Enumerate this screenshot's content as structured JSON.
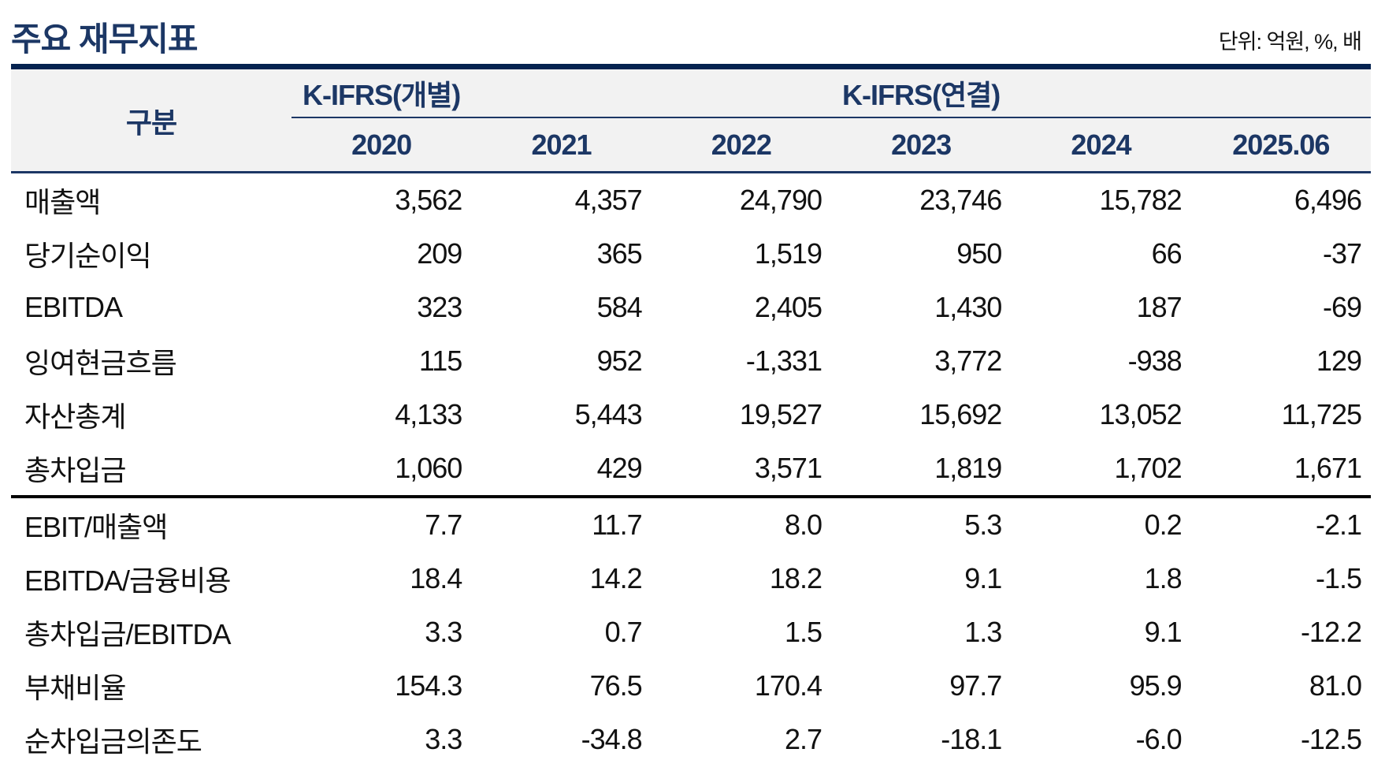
{
  "title": "주요 재무지표",
  "unit_note": "단위: 억원, %, 배",
  "colors": {
    "navy_text": "#1c3765",
    "top_rule": "#052350",
    "header_bg": "#f2f2f2",
    "body_text": "#111111",
    "section_rule": "#000000"
  },
  "table": {
    "corner_label": "구분",
    "group_headers": {
      "individual": "K-IFRS(개별)",
      "consolidated": "K-IFRS(연결)"
    },
    "years": [
      "2020",
      "2021",
      "2022",
      "2023",
      "2024",
      "2025.06"
    ],
    "rows": [
      {
        "label": "매출액",
        "values": [
          "3,562",
          "4,357",
          "24,790",
          "23,746",
          "15,782",
          "6,496"
        ]
      },
      {
        "label": "당기순이익",
        "values": [
          "209",
          "365",
          "1,519",
          "950",
          "66",
          "-37"
        ]
      },
      {
        "label": "EBITDA",
        "values": [
          "323",
          "584",
          "2,405",
          "1,430",
          "187",
          "-69"
        ]
      },
      {
        "label": "잉여현금흐름",
        "values": [
          "115",
          "952",
          "-1,331",
          "3,772",
          "-938",
          "129"
        ]
      },
      {
        "label": "자산총계",
        "values": [
          "4,133",
          "5,443",
          "19,527",
          "15,692",
          "13,052",
          "11,725"
        ]
      },
      {
        "label": "총차입금",
        "values": [
          "1,060",
          "429",
          "3,571",
          "1,819",
          "1,702",
          "1,671"
        ]
      },
      {
        "label": "EBIT/매출액",
        "values": [
          "7.7",
          "11.7",
          "8.0",
          "5.3",
          "0.2",
          "-2.1"
        ]
      },
      {
        "label": "EBITDA/금융비용",
        "values": [
          "18.4",
          "14.2",
          "18.2",
          "9.1",
          "1.8",
          "-1.5"
        ]
      },
      {
        "label": "총차입금/EBITDA",
        "values": [
          "3.3",
          "0.7",
          "1.5",
          "1.3",
          "9.1",
          "-12.2"
        ]
      },
      {
        "label": "부채비율",
        "values": [
          "154.3",
          "76.5",
          "170.4",
          "97.7",
          "95.9",
          "81.0"
        ]
      },
      {
        "label": "순차입금의존도",
        "values": [
          "3.3",
          "-34.8",
          "2.7",
          "-18.1",
          "-6.0",
          "-12.5"
        ]
      }
    ],
    "section_break_after": "총차입금"
  }
}
